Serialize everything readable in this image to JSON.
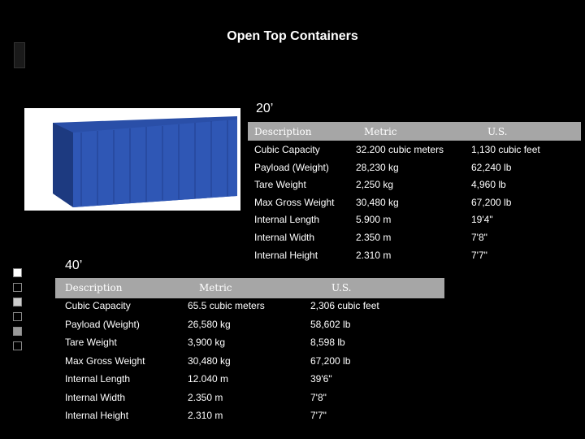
{
  "title": "Open Top Containers",
  "table_20": {
    "label": "20’",
    "headers": [
      "Description",
      "Metric",
      "U.S."
    ],
    "rows": [
      [
        "Cubic Capacity",
        "32.200 cubic meters",
        "1,130 cubic feet"
      ],
      [
        "Payload (Weight)",
        "28,230 kg",
        "62,240 lb"
      ],
      [
        "Tare Weight",
        "2,250 kg",
        "4,960 lb"
      ],
      [
        "Max Gross Weight",
        "30,480 kg",
        "67,200 lb"
      ],
      [
        "Internal Length",
        "5.900 m",
        "19'4\""
      ],
      [
        "Internal Width",
        "2.350 m",
        "7'8\""
      ],
      [
        "Internal Height",
        "2.310 m",
        "7'7\""
      ]
    ]
  },
  "table_40": {
    "label": "40’",
    "headers": [
      "Description",
      "Metric",
      "U.S."
    ],
    "rows": [
      [
        "Cubic Capacity",
        "65.5 cubic meters",
        "2,306 cubic feet"
      ],
      [
        "Payload (Weight)",
        "26,580 kg",
        "58,602 lb"
      ],
      [
        "Tare Weight",
        "3,900 kg",
        "8,598 lb"
      ],
      [
        "Max Gross Weight",
        "30,480 kg",
        "67,200 lb"
      ],
      [
        "Internal Length",
        "12.040 m",
        "39'6\""
      ],
      [
        "Internal Width",
        "2.350 m",
        "7'8\""
      ],
      [
        "Internal Height",
        "2.310 m",
        "7'7\""
      ]
    ]
  }
}
